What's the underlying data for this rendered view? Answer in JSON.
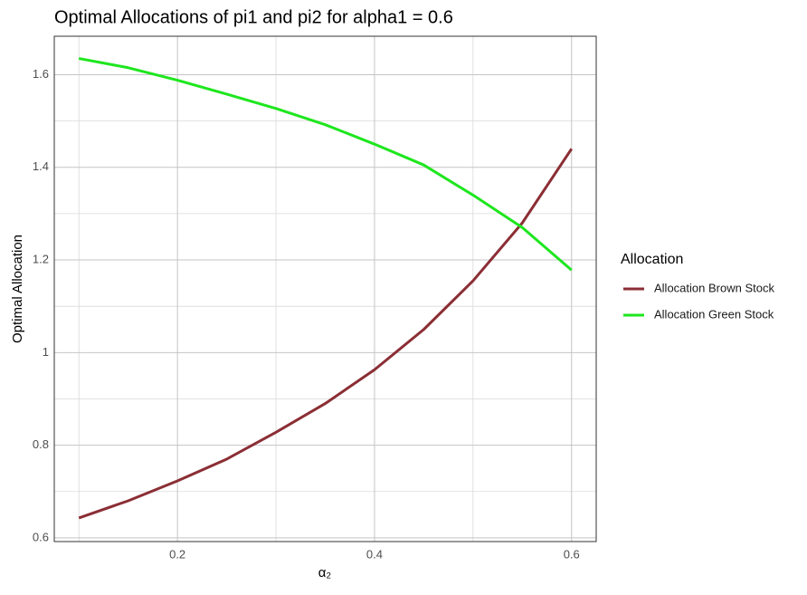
{
  "chart_data": {
    "type": "line",
    "title": "Optimal Allocations of pi1 and pi2 for alpha1 = 0.6",
    "x_label": "α₂",
    "y_label": "Optimal Allocation",
    "legend_title": "Allocation",
    "legend_position": "right",
    "grid": true,
    "x": [
      0.1,
      0.15,
      0.2,
      0.25,
      0.3,
      0.35,
      0.4,
      0.45,
      0.5,
      0.55,
      0.6
    ],
    "series": [
      {
        "name": "Allocation Brown Stock",
        "color": "#8b2e35",
        "values": [
          0.643,
          0.68,
          0.723,
          0.77,
          0.828,
          0.89,
          0.963,
          1.05,
          1.155,
          1.28,
          1.44
        ]
      },
      {
        "name": "Allocation Green Stock",
        "color": "#1ee61e",
        "values": [
          1.635,
          1.615,
          1.588,
          1.558,
          1.527,
          1.492,
          1.45,
          1.405,
          1.34,
          1.27,
          1.178
        ]
      }
    ],
    "xlim": [
      0.075,
      0.625
    ],
    "xticks": [
      0.2,
      0.4,
      0.6
    ],
    "ylim": [
      0.592,
      1.683
    ],
    "yticks": [
      0.6,
      0.8,
      1.0,
      1.2,
      1.4,
      1.6
    ]
  }
}
